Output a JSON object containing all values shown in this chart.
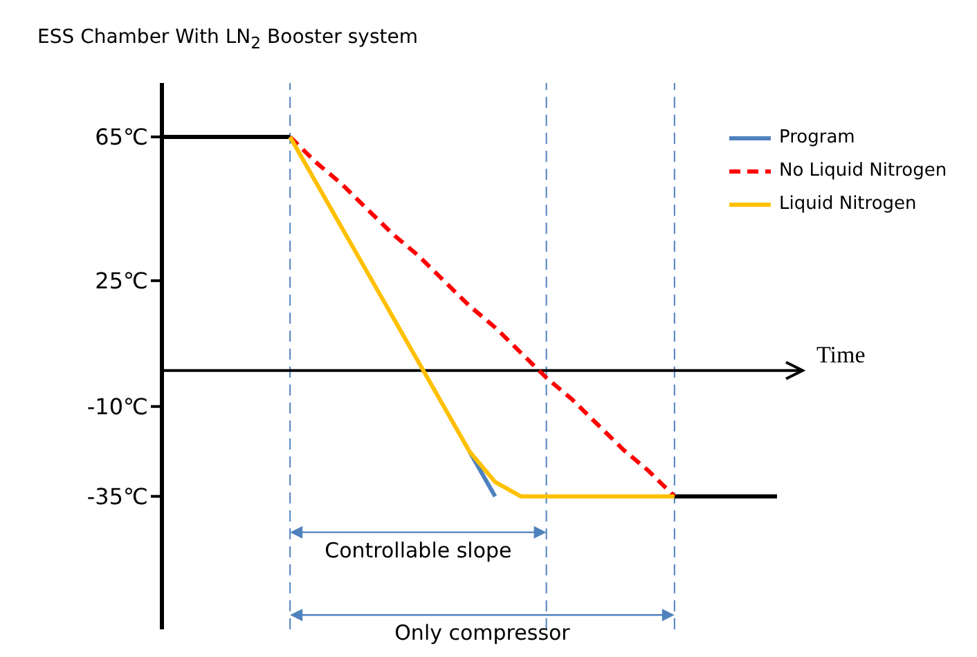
{
  "chart_data": {
    "type": "line",
    "title": "ESS Chamber With LN$_{2}$ Booster system",
    "xlabel": "Time",
    "categories": [
      null,
      null,
      null,
      null,
      null,
      null,
      null,
      null,
      null,
      null,
      null,
      null,
      null,
      null,
      null,
      null,
      null,
      null,
      null,
      null,
      null,
      null,
      null,
      null,
      null,
      null
    ],
    "ylim": [
      -72,
      80
    ],
    "yticks": [
      {
        "value": 65,
        "label": "65℃"
      },
      {
        "value": 25,
        "label": "25℃"
      },
      {
        "value": -10,
        "label": "-10℃"
      },
      {
        "value": -35,
        "label": "-35℃"
      }
    ],
    "tick_labels": "y",
    "legend": "top right",
    "marker": "none",
    "series": [
      {
        "color": "#000000",
        "values": [
          65,
          65,
          65,
          65,
          65,
          65,
          null,
          null,
          null,
          null,
          null,
          null,
          null,
          null,
          null,
          null,
          null,
          null,
          null,
          null,
          null,
          null,
          null,
          null,
          null,
          null
        ]
      },
      {
        "color": "#000000",
        "values": [
          null,
          null,
          null,
          null,
          null,
          null,
          null,
          null,
          null,
          null,
          null,
          null,
          null,
          null,
          null,
          null,
          null,
          null,
          null,
          null,
          -35,
          -35,
          -35,
          -35,
          -35,
          null
        ]
      },
      {
        "name": "Program",
        "color": "#4f81bd",
        "line_style": "solid",
        "values": [
          null,
          null,
          null,
          null,
          null,
          null,
          null,
          null,
          null,
          null,
          null,
          null,
          -22.5,
          -35,
          null,
          null,
          null,
          null,
          null,
          null,
          null,
          null,
          null,
          null,
          null,
          null
        ]
      },
      {
        "name": "No Liquid Nitrogen",
        "color": "#ff0000",
        "line_style": "dashed",
        "values": [
          null,
          null,
          null,
          null,
          null,
          65,
          58,
          52,
          45,
          38,
          32,
          25,
          18,
          12,
          5,
          -2,
          -8,
          -15,
          -22,
          -28,
          -35,
          null,
          null,
          null,
          null,
          null
        ]
      },
      {
        "name": "Liquid Nitrogen",
        "color": "#ffc000",
        "line_style": "solid",
        "values": [
          null,
          null,
          null,
          null,
          null,
          65,
          52.5,
          40,
          27.5,
          15,
          2.5,
          -10,
          -22.5,
          -31,
          -35,
          -35,
          -35,
          -35,
          -35,
          -35,
          -35,
          null,
          null,
          null,
          null,
          null
        ]
      }
    ],
    "annotations": [
      "Controllable slope",
      "Only compressor"
    ]
  }
}
